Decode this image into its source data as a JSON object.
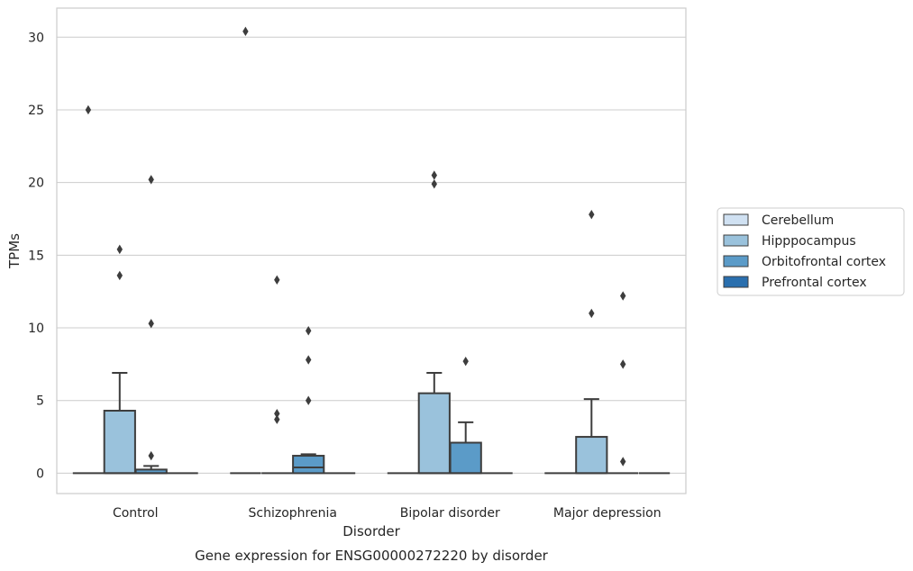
{
  "chart_data": {
    "type": "box",
    "title": "Gene expression for ENSG00000272220 by disorder",
    "xlabel": "Disorder",
    "ylabel": "TPMs",
    "ylim": [
      -1.4,
      32
    ],
    "yticks": [
      0,
      5,
      10,
      15,
      20,
      25,
      30
    ],
    "grid": true,
    "legend_position": "right",
    "categories": [
      "Control",
      "Schizophrenia",
      "Bipolar disorder",
      "Major depression"
    ],
    "series": [
      {
        "name": "Cerebellum",
        "color": "#d0e1f2",
        "boxes": [
          {
            "q1": 0,
            "median": 0,
            "q3": 0,
            "whisker_low": 0,
            "whisker_high": 0,
            "outliers": [
              25.0
            ]
          },
          {
            "q1": 0,
            "median": 0,
            "q3": 0,
            "whisker_low": 0,
            "whisker_high": 0,
            "outliers": [
              30.4
            ]
          },
          {
            "q1": 0,
            "median": 0,
            "q3": 0,
            "whisker_low": 0,
            "whisker_high": 0,
            "outliers": []
          },
          {
            "q1": 0,
            "median": 0,
            "q3": 0,
            "whisker_low": 0,
            "whisker_high": 0,
            "outliers": []
          }
        ]
      },
      {
        "name": "Hipppocampus",
        "color": "#9ac2dc",
        "boxes": [
          {
            "q1": 0,
            "median": 0,
            "q3": 4.3,
            "whisker_low": 0,
            "whisker_high": 6.9,
            "outliers": [
              15.4,
              13.6
            ]
          },
          {
            "q1": 0,
            "median": 0,
            "q3": 0,
            "whisker_low": 0,
            "whisker_high": 0,
            "outliers": [
              13.3,
              4.1,
              3.7
            ]
          },
          {
            "q1": 0,
            "median": 0,
            "q3": 5.5,
            "whisker_low": 0,
            "whisker_high": 6.9,
            "outliers": [
              20.5,
              19.9
            ]
          },
          {
            "q1": 0,
            "median": 0,
            "q3": 2.5,
            "whisker_low": 0,
            "whisker_high": 5.1,
            "outliers": [
              17.8,
              11.0
            ]
          }
        ]
      },
      {
        "name": "Orbitofrontal cortex",
        "color": "#5b9bc8",
        "boxes": [
          {
            "q1": 0,
            "median": 0,
            "q3": 0.25,
            "whisker_low": 0,
            "whisker_high": 0.5,
            "outliers": [
              20.2,
              10.3,
              1.2
            ]
          },
          {
            "q1": 0,
            "median": 0.4,
            "q3": 1.2,
            "whisker_low": 0,
            "whisker_high": 1.3,
            "outliers": [
              9.8,
              7.8,
              5.0
            ]
          },
          {
            "q1": 0,
            "median": 0,
            "q3": 2.1,
            "whisker_low": 0,
            "whisker_high": 3.5,
            "outliers": [
              7.7
            ]
          },
          {
            "q1": 0,
            "median": 0,
            "q3": 0,
            "whisker_low": 0,
            "whisker_high": 0,
            "outliers": [
              12.2,
              7.5,
              0.8
            ]
          }
        ]
      },
      {
        "name": "Prefrontal cortex",
        "color": "#2a6fae",
        "boxes": [
          {
            "q1": 0,
            "median": 0,
            "q3": 0,
            "whisker_low": 0,
            "whisker_high": 0,
            "outliers": []
          },
          {
            "q1": 0,
            "median": 0,
            "q3": 0,
            "whisker_low": 0,
            "whisker_high": 0,
            "outliers": []
          },
          {
            "q1": 0,
            "median": 0,
            "q3": 0,
            "whisker_low": 0,
            "whisker_high": 0,
            "outliers": []
          },
          {
            "q1": 0,
            "median": 0,
            "q3": 0,
            "whisker_low": 0,
            "whisker_high": 0,
            "outliers": []
          }
        ]
      }
    ]
  }
}
